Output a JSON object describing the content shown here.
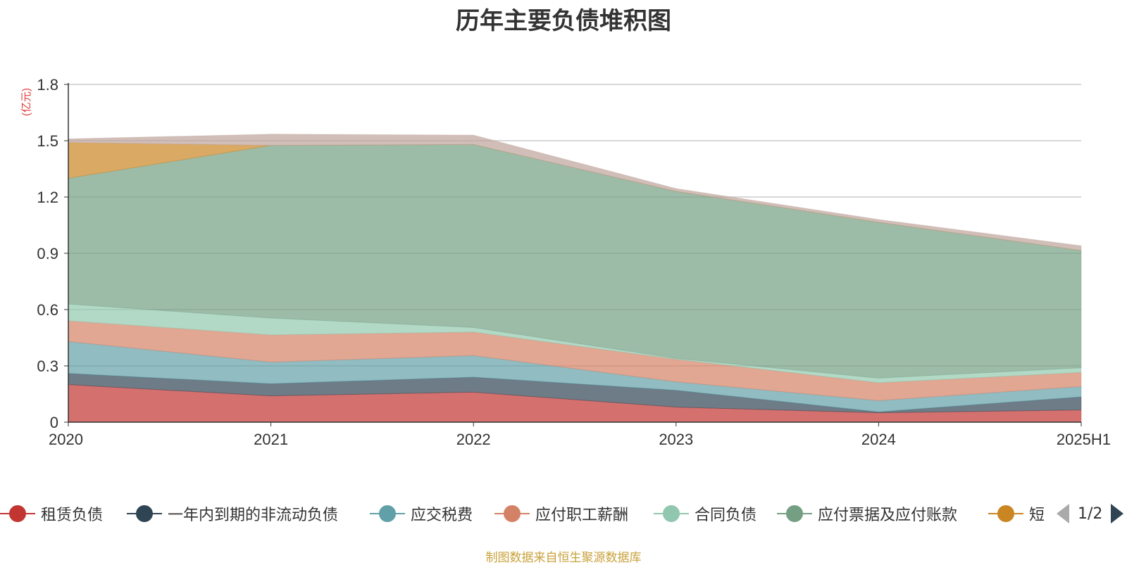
{
  "chart_data": {
    "type": "area",
    "stacked": true,
    "title": "历年主要负债堆积图",
    "unit_label": "(亿元)",
    "categories": [
      "2020",
      "2021",
      "2022",
      "2023",
      "2024",
      "2025H1"
    ],
    "y_ticks": [
      "0",
      "0.3",
      "0.6",
      "0.9",
      "1.2",
      "1.5",
      "1.8"
    ],
    "ylim": [
      0,
      1.8
    ],
    "grid": true,
    "series": [
      {
        "name": "租赁负债",
        "color": "#c23531",
        "values": [
          0.2,
          0.14,
          0.16,
          0.08,
          0.05,
          0.065
        ]
      },
      {
        "name": "一年内到期的非流动负债",
        "color": "#2f4554",
        "values": [
          0.06,
          0.065,
          0.08,
          0.09,
          0.005,
          0.07
        ]
      },
      {
        "name": "应交税费",
        "color": "#61a0a8",
        "values": [
          0.17,
          0.115,
          0.115,
          0.045,
          0.06,
          0.055
        ]
      },
      {
        "name": "应付职工薪酬",
        "color": "#d48265",
        "values": [
          0.11,
          0.145,
          0.125,
          0.12,
          0.095,
          0.075
        ]
      },
      {
        "name": "合同负债",
        "color": "#91c7ae",
        "values": [
          0.09,
          0.09,
          0.025,
          0.005,
          0.025,
          0.025
        ]
      },
      {
        "name": "应付票据及应付账款",
        "color": "#749f83",
        "values": [
          0.67,
          0.92,
          0.975,
          0.89,
          0.83,
          0.625
        ]
      },
      {
        "name": "短",
        "color": "#ca8622",
        "values": [
          0.19,
          0.0,
          0.0,
          0.0,
          0.0,
          0.0
        ]
      },
      {
        "color": "#bda29a",
        "values": [
          0.02,
          0.06,
          0.05,
          0.015,
          0.015,
          0.025
        ]
      }
    ],
    "legend": {
      "position": "bottom",
      "items": [
        {
          "name": "租赁负债",
          "color": "#c23531"
        },
        {
          "name": "一年内到期的非流动负债",
          "color": "#2f4554"
        },
        {
          "name": "应交税费",
          "color": "#61a0a8"
        },
        {
          "name": "应付职工薪酬",
          "color": "#d48265"
        },
        {
          "name": "合同负债",
          "color": "#91c7ae"
        },
        {
          "name": "应付票据及应付账款",
          "color": "#749f83"
        },
        {
          "name": "短",
          "color": "#ca8622"
        }
      ],
      "page": "1/2"
    },
    "source_note": "制图数据来自恒生聚源数据库"
  }
}
